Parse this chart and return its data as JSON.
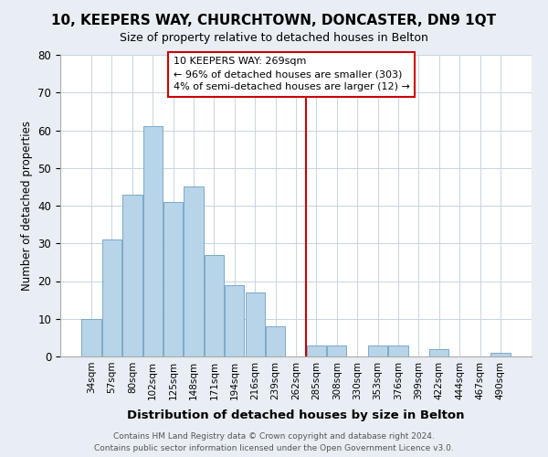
{
  "title": "10, KEEPERS WAY, CHURCHTOWN, DONCASTER, DN9 1QT",
  "subtitle": "Size of property relative to detached houses in Belton",
  "xlabel": "Distribution of detached houses by size in Belton",
  "ylabel": "Number of detached properties",
  "bar_labels": [
    "34sqm",
    "57sqm",
    "80sqm",
    "102sqm",
    "125sqm",
    "148sqm",
    "171sqm",
    "194sqm",
    "216sqm",
    "239sqm",
    "262sqm",
    "285sqm",
    "308sqm",
    "330sqm",
    "353sqm",
    "376sqm",
    "399sqm",
    "422sqm",
    "444sqm",
    "467sqm",
    "490sqm"
  ],
  "bar_values": [
    10,
    31,
    43,
    61,
    41,
    45,
    27,
    19,
    17,
    8,
    0,
    3,
    3,
    0,
    3,
    3,
    0,
    2,
    0,
    0,
    1
  ],
  "bar_color": "#b8d4e8",
  "bar_edge_color": "#7aaac8",
  "vline_color": "#cc0000",
  "annotation_text": "10 KEEPERS WAY: 269sqm\n← 96% of detached houses are smaller (303)\n4% of semi-detached houses are larger (12) →",
  "annotation_box_color": "#ffffff",
  "annotation_box_edge": "#cc0000",
  "ylim": [
    0,
    80
  ],
  "yticks": [
    0,
    10,
    20,
    30,
    40,
    50,
    60,
    70,
    80
  ],
  "footer": "Contains HM Land Registry data © Crown copyright and database right 2024.\nContains public sector information licensed under the Open Government Licence v3.0.",
  "bg_color": "#e8eef4",
  "plot_bg_color": "#ffffff",
  "grid_color": "#c8d4e0"
}
